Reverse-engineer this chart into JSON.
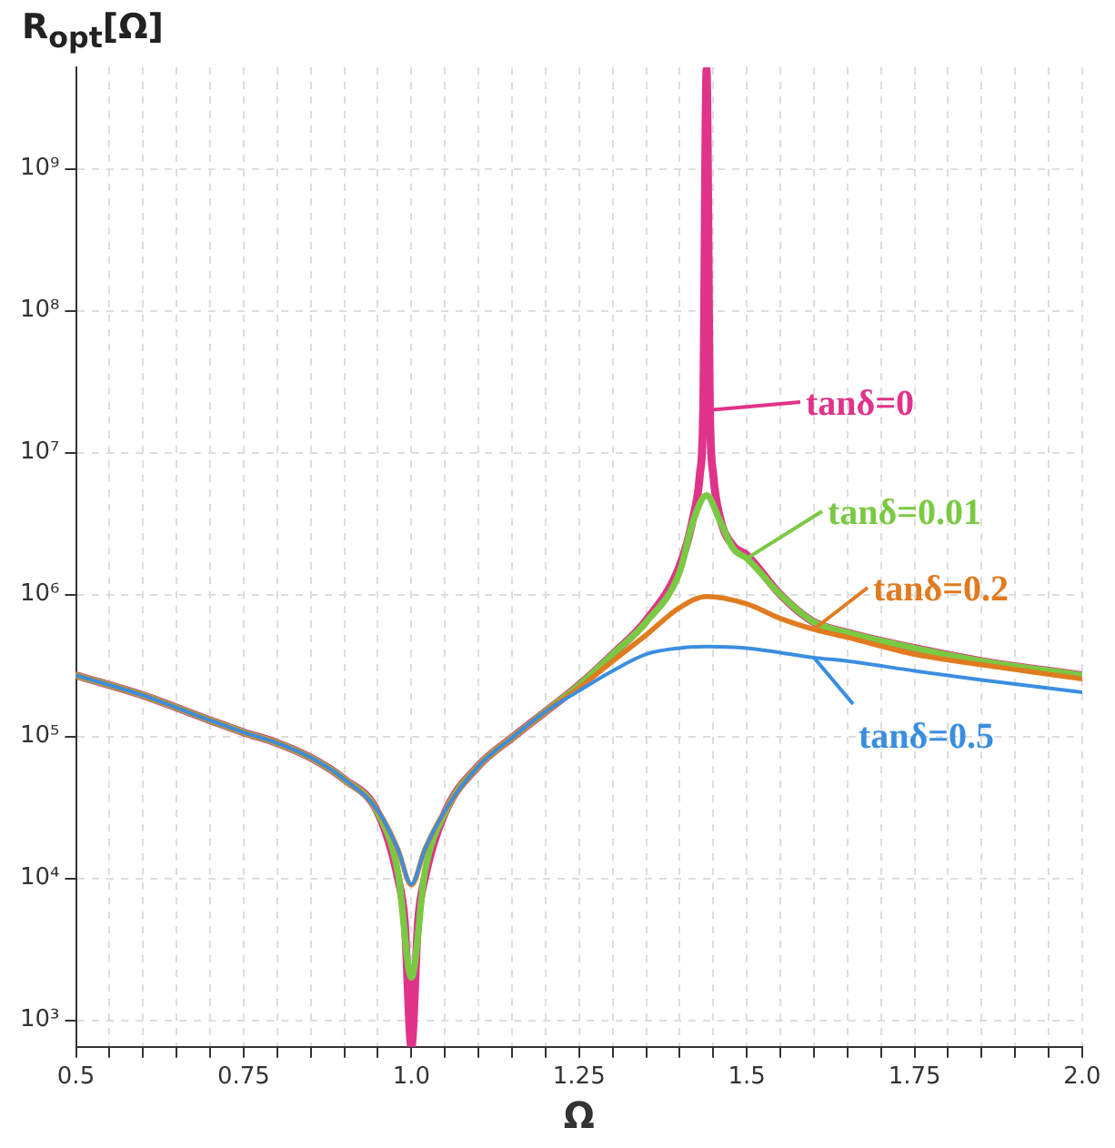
{
  "chart_data": {
    "type": "line",
    "xlabel": "Ω",
    "ylabel": "R$_{opt}$[Ω]",
    "log": "y",
    "grid": true,
    "marker": "none",
    "legend": "right",
    "line_style": "solid",
    "xlim": [
      0.5,
      2.0
    ],
    "ylim": [
      650,
      5200000000.0
    ],
    "xticks": [
      {
        "value": 0.5,
        "label": "0.5"
      },
      {
        "value": 0.55,
        "label": null
      },
      {
        "value": 0.6,
        "label": null
      },
      {
        "value": 0.65,
        "label": null
      },
      {
        "value": 0.7,
        "label": null
      },
      0.75,
      {
        "value": 0.8,
        "label": null
      },
      {
        "value": 0.85,
        "label": null
      },
      {
        "value": 0.9,
        "label": null
      },
      {
        "value": 0.95,
        "label": null
      },
      {
        "value": 1,
        "label": "1.0"
      },
      {
        "value": 1.05,
        "label": null
      },
      {
        "value": 1.1,
        "label": null
      },
      {
        "value": 1.15,
        "label": null
      },
      {
        "value": 1.2,
        "label": null
      },
      1.25,
      {
        "value": 1.3,
        "label": null
      },
      {
        "value": 1.35,
        "label": null
      },
      {
        "value": 1.4,
        "label": null
      },
      {
        "value": 1.45,
        "label": null
      },
      {
        "value": 1.5,
        "label": "1.5"
      },
      {
        "value": 1.55,
        "label": null
      },
      {
        "value": 1.6,
        "label": null
      },
      {
        "value": 1.65,
        "label": null
      },
      {
        "value": 1.7,
        "label": null
      },
      1.75,
      {
        "value": 1.8,
        "label": null
      },
      {
        "value": 1.85,
        "label": null
      },
      {
        "value": 1.9,
        "label": null
      },
      {
        "value": 1.95,
        "label": null
      },
      {
        "value": 2,
        "label": "2.0"
      }
    ],
    "yticks": [
      {
        "value": 1000,
        "label": "10³"
      },
      {
        "value": 10000,
        "label": "10⁴"
      },
      {
        "value": 100000,
        "label": "10⁵"
      },
      {
        "value": 1000000,
        "label": "10⁶"
      },
      {
        "value": 10000000,
        "label": "10⁷"
      },
      {
        "value": 100000000,
        "label": "10⁸"
      },
      {
        "value": 1000000000,
        "label": "10⁹"
      }
    ],
    "series": [
      {
        "name": "tanδ=0",
        "color": "#e0338a",
        "x": [
          0.5,
          0.6,
          0.7,
          0.75,
          0.8,
          0.85,
          0.9,
          0.95,
          0.98,
          0.99,
          1.0,
          1.01,
          1.02,
          1.05,
          1.1,
          1.15,
          1.2,
          1.25,
          1.3,
          1.35,
          1.4,
          1.42,
          1.43,
          1.435,
          1.44,
          1.445,
          1.45,
          1.46,
          1.48,
          1.5,
          1.55,
          1.6,
          1.65,
          1.75,
          1.85,
          2.0
        ],
        "values": [
          270000.0,
          195000.0,
          130000.0,
          107000.0,
          90000.0,
          71000.0,
          50000.0,
          29000.0,
          10000.0,
          5000.0,
          650.0,
          5000.0,
          10000.0,
          29000.0,
          62000.0,
          98000.0,
          150000.0,
          230000.0,
          380000.0,
          660000.0,
          1600000.0,
          3500000.0,
          7000000.0,
          20000000.0,
          5000000000.0,
          20000000.0,
          7000000.0,
          3500000.0,
          2200000.0,
          1900000.0,
          1000000.0,
          640000.0,
          540000.0,
          420000.0,
          340000.0,
          270000.0
        ]
      },
      {
        "name": "tanδ=0.01",
        "color": "#7ac943",
        "x": [
          0.5,
          0.6,
          0.7,
          0.75,
          0.8,
          0.85,
          0.9,
          0.95,
          0.98,
          1.0,
          1.02,
          1.05,
          1.1,
          1.15,
          1.2,
          1.25,
          1.3,
          1.35,
          1.4,
          1.42,
          1.44,
          1.46,
          1.48,
          1.5,
          1.55,
          1.6,
          1.65,
          1.75,
          1.85,
          2.0
        ],
        "values": [
          270000.0,
          195000.0,
          130000.0,
          107000.0,
          90000.0,
          71000.0,
          50000.0,
          29000.0,
          11000.0,
          2000.0,
          11000.0,
          29000.0,
          62000.0,
          98000.0,
          150000.0,
          230000.0,
          380000.0,
          640000.0,
          1450000.0,
          3300000.0,
          5000000.0,
          3300000.0,
          2100000.0,
          1800000.0,
          1000000.0,
          640000.0,
          540000.0,
          420000.0,
          340000.0,
          270000.0
        ]
      },
      {
        "name": "tanδ=0.2",
        "color": "#e07b20",
        "x": [
          0.5,
          0.6,
          0.7,
          0.75,
          0.8,
          0.85,
          0.9,
          0.95,
          0.98,
          1.0,
          1.02,
          1.05,
          1.1,
          1.15,
          1.2,
          1.25,
          1.3,
          1.35,
          1.4,
          1.44,
          1.5,
          1.55,
          1.6,
          1.65,
          1.75,
          1.85,
          2.0
        ],
        "values": [
          270000.0,
          195000.0,
          130000.0,
          107000.0,
          90000.0,
          71000.0,
          50000.0,
          30000.0,
          16000.0,
          9000.0,
          16000.0,
          30000.0,
          62000.0,
          98000.0,
          150000.0,
          220000.0,
          340000.0,
          520000.0,
          810000.0,
          970000.0,
          860000.0,
          680000.0,
          570000.0,
          500000.0,
          380000.0,
          320000.0,
          255000.0
        ]
      },
      {
        "name": "tanδ=0.5",
        "color": "#3a8ee0",
        "x": [
          0.5,
          0.6,
          0.7,
          0.75,
          0.8,
          0.85,
          0.9,
          0.95,
          0.98,
          1.0,
          1.02,
          1.05,
          1.1,
          1.15,
          1.2,
          1.25,
          1.3,
          1.35,
          1.4,
          1.44,
          1.5,
          1.55,
          1.6,
          1.65,
          1.75,
          1.85,
          2.0
        ],
        "values": [
          270000.0,
          195000.0,
          130000.0,
          107000.0,
          90000.0,
          71000.0,
          50000.0,
          30000.0,
          16000.0,
          9100.0,
          16000.0,
          30000.0,
          62000.0,
          98000.0,
          150000.0,
          210000.0,
          290000.0,
          380000.0,
          420000.0,
          430000.0,
          420000.0,
          390000.0,
          360000.0,
          340000.0,
          290000.0,
          250000.0,
          205000.0
        ]
      }
    ]
  }
}
